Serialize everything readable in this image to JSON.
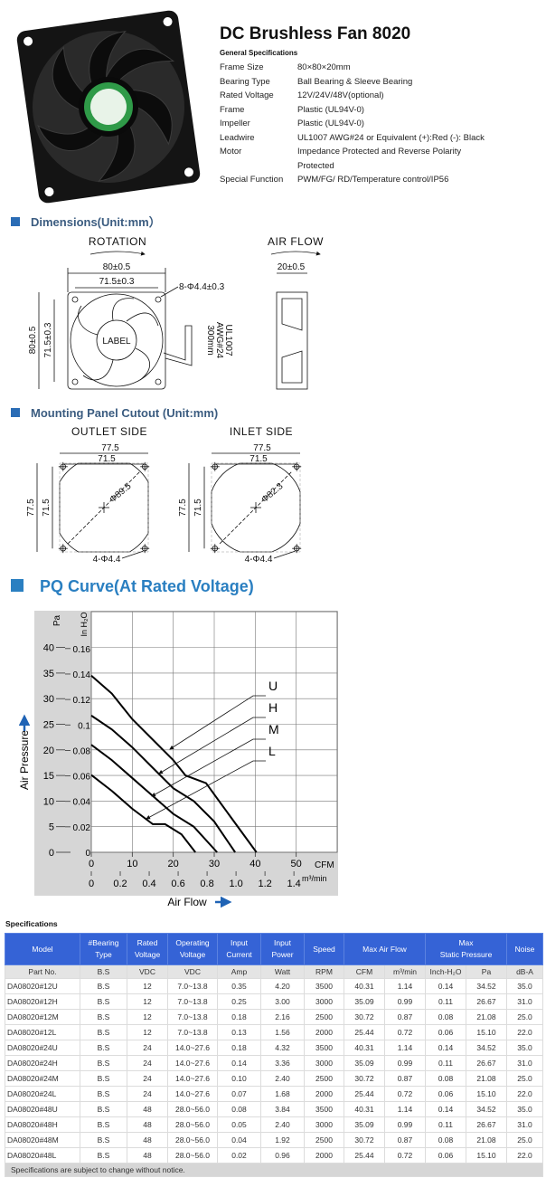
{
  "header": {
    "title": "DC Brushless Fan 8020",
    "subtitle": "General Specifications"
  },
  "general_specs": [
    [
      "Frame Size",
      "80×80×20mm"
    ],
    [
      "Bearing Type",
      "Ball Bearing  & Sleeve Bearing"
    ],
    [
      "Rated Voltage",
      "12V/24V/48V(optional)"
    ],
    [
      "Frame",
      "Plastic (UL94V-0)"
    ],
    [
      "Impeller",
      "Plastic (UL94V-0)"
    ],
    [
      "Leadwire",
      "UL1007 AWG#24 or Equivalent (+):Red (-): Black"
    ],
    [
      "Motor",
      "Impedance Protected and Reverse Polarity Protected"
    ],
    [
      "Special Function",
      "PWM/FG/ RD/Temperature control/IP56"
    ]
  ],
  "dimensions": {
    "title": "Dimensions(Unit:mm）",
    "rotation": "ROTATION",
    "air_flow": "AIR FLOW",
    "width": "80±0.5",
    "hole_pitch": "71.5±0.3",
    "holes": "8-Φ4.4±0.3",
    "height": "80±0.5",
    "hole_pitch_v": "71.5±0.3",
    "label": "LABEL",
    "lead": [
      "UL1007",
      "AWG#24",
      "300mm"
    ],
    "depth": "20±0.5"
  },
  "cutout": {
    "title": "Mounting Panel Cutout (Unit:mm)",
    "outlet": {
      "name": "OUTLET SIDE",
      "width": "77.5",
      "pitch": "71.5",
      "height": "77.5",
      "pitch_v": "71.5",
      "diameter": "Φ89.5",
      "holes": "4-Φ4.4"
    },
    "inlet": {
      "name": "INLET SIDE",
      "width": "77.5",
      "pitch": "71.5",
      "height": "77.5",
      "pitch_v": "71.5",
      "diameter": "Φ82.3",
      "holes": "4-Φ4.4"
    }
  },
  "chart_data": {
    "type": "line",
    "title": "PQ Curve(At Rated Voltage)",
    "y_label": "Air Pressure",
    "x_label": "Air Flow",
    "y_unit": "Pa",
    "y2_unit": "In H₂O",
    "x_unit": "CFM",
    "x2_unit": "m³/min",
    "xlim": [
      0,
      60
    ],
    "xticks": [
      0,
      10,
      20,
      30,
      40,
      50
    ],
    "x2lim": [
      0,
      1.699
    ],
    "x2ticks": [
      0,
      0.2,
      0.4,
      0.6,
      0.8,
      {
        "value": 1,
        "label": "1.0"
      },
      1.2,
      1.4
    ],
    "ylim": [
      0,
      47
    ],
    "yticks": [
      0,
      5,
      10,
      15,
      20,
      25,
      30,
      35,
      40
    ],
    "y2lim": [
      0,
      0.189
    ],
    "y2ticks": [
      0,
      0.02,
      0.04,
      0.06,
      0.08,
      0.1,
      0.12,
      0.14,
      0.16
    ],
    "grid": true,
    "series": [
      {
        "name": "U",
        "color": "#000000",
        "x": [
          0,
          5,
          10,
          15,
          20,
          23,
          28,
          33,
          40.3
        ],
        "values": [
          34.5,
          31,
          26,
          22,
          18,
          15,
          13.5,
          8,
          0
        ]
      },
      {
        "name": "H",
        "color": "#000000",
        "x": [
          0,
          5,
          10,
          15,
          20,
          25,
          30,
          35.1
        ],
        "values": [
          26.7,
          24,
          20.5,
          16.5,
          12.5,
          10,
          6,
          0
        ]
      },
      {
        "name": "M",
        "color": "#000000",
        "x": [
          0,
          5,
          10,
          15,
          20,
          25,
          30.7
        ],
        "values": [
          21,
          18,
          14.5,
          11,
          7.5,
          5,
          0
        ]
      },
      {
        "name": "L",
        "color": "#000000",
        "x": [
          0,
          5,
          10,
          15,
          18,
          22,
          25.4
        ],
        "values": [
          15.1,
          12,
          8.5,
          5.5,
          5.5,
          3.5,
          0
        ]
      }
    ]
  },
  "table": {
    "title": "Specifications",
    "header": [
      [
        "Model"
      ],
      [
        "#Bearing",
        "Type"
      ],
      [
        "Rated",
        "Voltage"
      ],
      [
        "Operating",
        "Voltage"
      ],
      [
        "Input",
        "Current"
      ],
      [
        "Input",
        "Power"
      ],
      [
        "Speed"
      ],
      [
        "Max Air Flow"
      ],
      [
        "Max",
        "Static Pressure"
      ],
      [
        "Noise"
      ]
    ],
    "units": [
      "Part No.",
      "B.S",
      "VDC",
      "VDC",
      "Amp",
      "Watt",
      "RPM",
      "CFM",
      "m³/min",
      "Inch-H₂O",
      "Pa",
      "dB-A"
    ],
    "rows": [
      [
        "DA08020#12U",
        "B.S",
        "12",
        "7.0~13.8",
        "0.35",
        "4.20",
        "3500",
        "40.31",
        "1.14",
        "0.14",
        "34.52",
        "35.0"
      ],
      [
        "DA08020#12H",
        "B.S",
        "12",
        "7.0~13.8",
        "0.25",
        "3.00",
        "3000",
        "35.09",
        "0.99",
        "0.11",
        "26.67",
        "31.0"
      ],
      [
        "DA08020#12M",
        "B.S",
        "12",
        "7.0~13.8",
        "0.18",
        "2.16",
        "2500",
        "30.72",
        "0.87",
        "0.08",
        "21.08",
        "25.0"
      ],
      [
        "DA08020#12L",
        "B.S",
        "12",
        "7.0~13.8",
        "0.13",
        "1.56",
        "2000",
        "25.44",
        "0.72",
        "0.06",
        "15.10",
        "22.0"
      ],
      [
        "DA08020#24U",
        "B.S",
        "24",
        "14.0~27.6",
        "0.18",
        "4.32",
        "3500",
        "40.31",
        "1.14",
        "0.14",
        "34.52",
        "35.0"
      ],
      [
        "DA08020#24H",
        "B.S",
        "24",
        "14.0~27.6",
        "0.14",
        "3.36",
        "3000",
        "35.09",
        "0.99",
        "0.11",
        "26.67",
        "31.0"
      ],
      [
        "DA08020#24M",
        "B.S",
        "24",
        "14.0~27.6",
        "0.10",
        "2.40",
        "2500",
        "30.72",
        "0.87",
        "0.08",
        "21.08",
        "25.0"
      ],
      [
        "DA08020#24L",
        "B.S",
        "24",
        "14.0~27.6",
        "0.07",
        "1.68",
        "2000",
        "25.44",
        "0.72",
        "0.06",
        "15.10",
        "22.0"
      ],
      [
        "DA08020#48U",
        "B.S",
        "48",
        "28.0~56.0",
        "0.08",
        "3.84",
        "3500",
        "40.31",
        "1.14",
        "0.14",
        "34.52",
        "35.0"
      ],
      [
        "DA08020#48H",
        "B.S",
        "48",
        "28.0~56.0",
        "0.05",
        "2.40",
        "3000",
        "35.09",
        "0.99",
        "0.11",
        "26.67",
        "31.0"
      ],
      [
        "DA08020#48M",
        "B.S",
        "48",
        "28.0~56.0",
        "0.04",
        "1.92",
        "2500",
        "30.72",
        "0.87",
        "0.08",
        "21.08",
        "25.0"
      ],
      [
        "DA08020#48L",
        "B.S",
        "48",
        "28.0~56.0",
        "0.02",
        "0.96",
        "2000",
        "25.44",
        "0.72",
        "0.06",
        "15.10",
        "22.0"
      ]
    ],
    "note": "Specifications are subject to change without notice."
  }
}
